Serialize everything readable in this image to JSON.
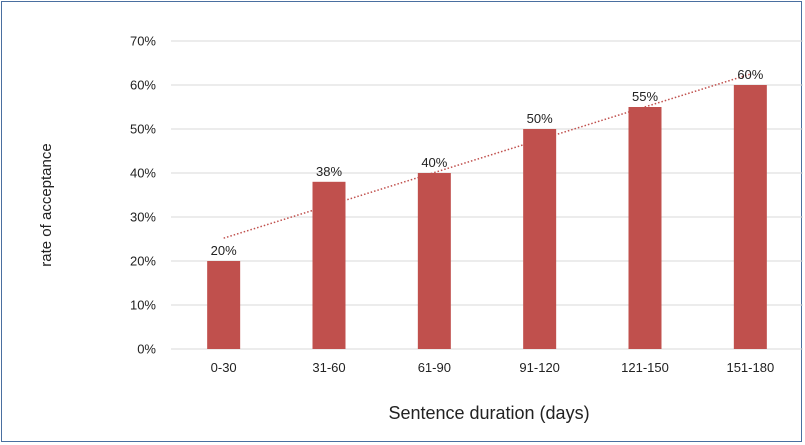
{
  "chart_data": {
    "type": "bar",
    "title": "",
    "xlabel": "Sentence duration (days)",
    "ylabel": "rate of acceptance",
    "categories": [
      "0-30",
      "31-60",
      "61-90",
      "91-120",
      "121-150",
      "151-180"
    ],
    "values": [
      20,
      38,
      40,
      50,
      55,
      60
    ],
    "value_labels": [
      "20%",
      "38%",
      "40%",
      "50%",
      "55%",
      "60%"
    ],
    "ylim": [
      0,
      70
    ],
    "yticks": [
      0,
      10,
      20,
      30,
      40,
      50,
      60,
      70
    ],
    "ytick_labels": [
      "0%",
      "10%",
      "20%",
      "30%",
      "40%",
      "50%",
      "60%",
      "70%"
    ],
    "grid": true,
    "legend": "none",
    "trendline": {
      "type": "linear",
      "style": "dotted"
    },
    "colors": {
      "bar": "#c0504d",
      "trendline": "#c0504d",
      "grid": "#d9d9d9",
      "border": "#4a6fa0"
    }
  }
}
